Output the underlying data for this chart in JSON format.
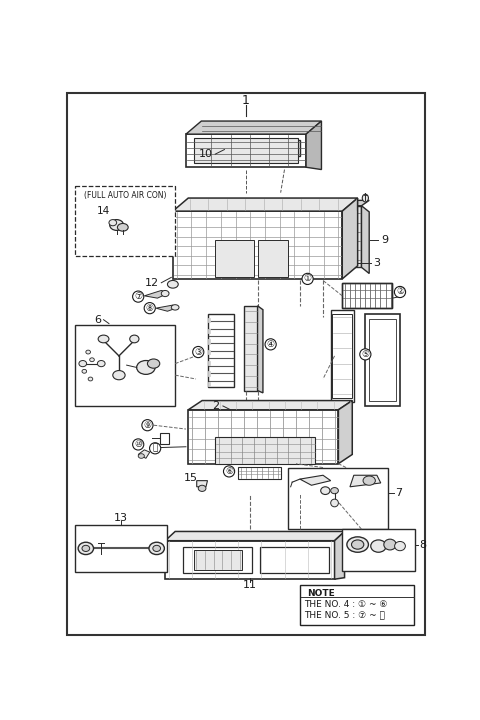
{
  "bg_color": "#ffffff",
  "lc": "#2a2a2a",
  "gray1": "#e8e8e8",
  "gray2": "#d0d0d0",
  "gray3": "#b8b8b8",
  "note_lines": [
    "NOTE",
    "THE NO. 4 : ① ~ ⑥",
    "THE NO. 5 : ⑦ ~ ⑪"
  ]
}
